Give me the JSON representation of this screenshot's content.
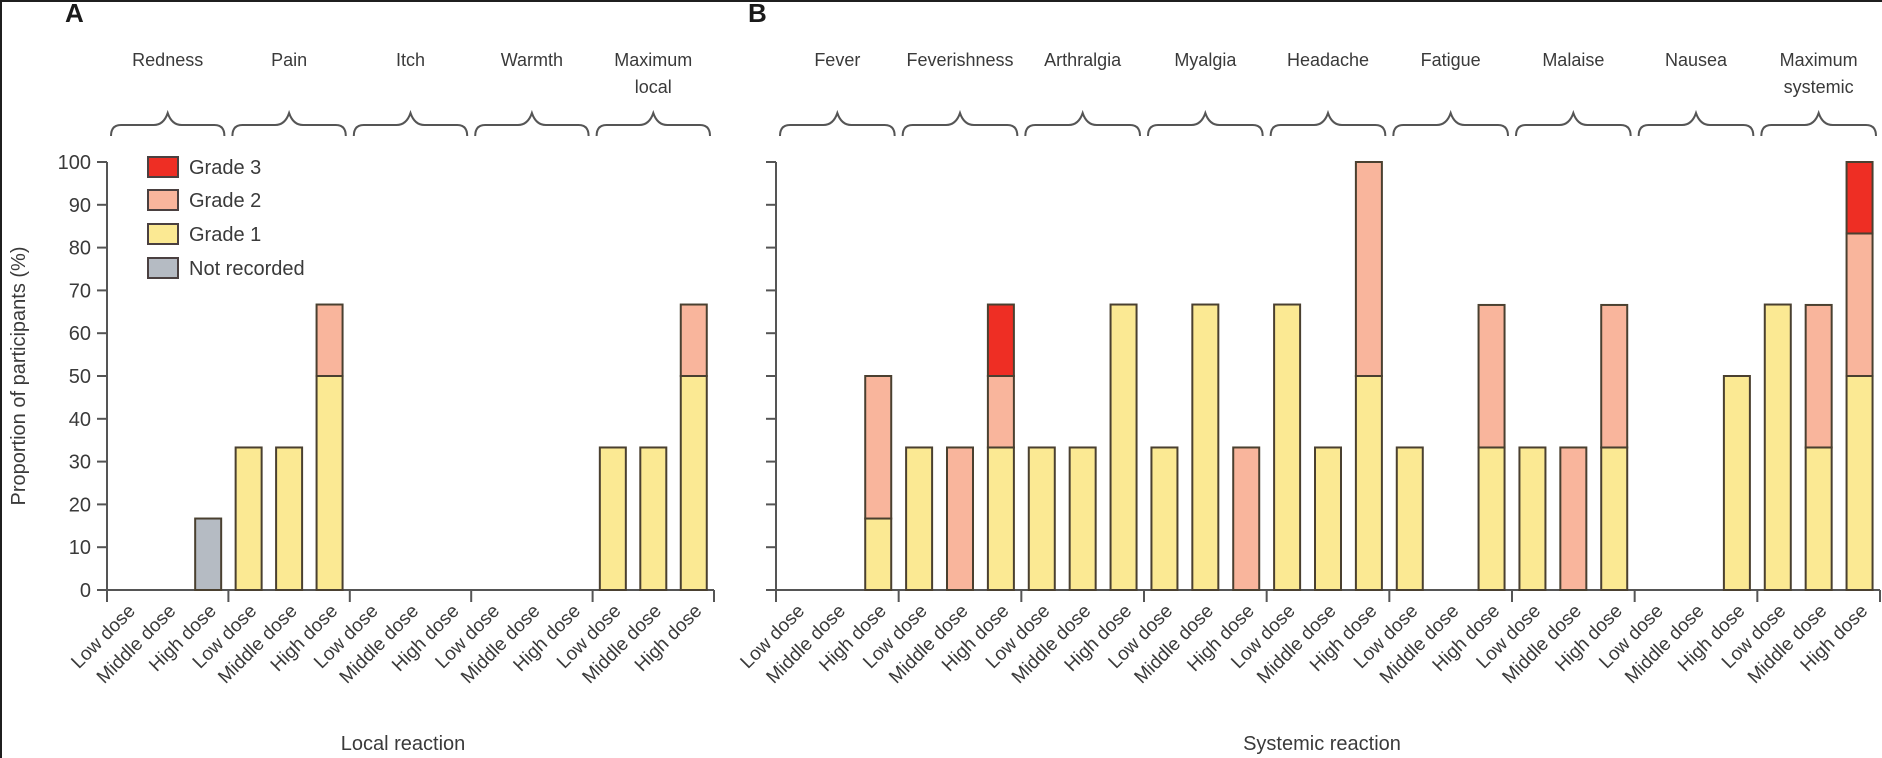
{
  "chart_data": [
    {
      "panel": "A",
      "type": "bar",
      "stacked": true,
      "title": "",
      "xlabel": "Local reaction",
      "ylabel": "Proportion of participants (%)",
      "ylim": [
        0,
        100
      ],
      "yticks": [
        0,
        10,
        20,
        30,
        40,
        50,
        60,
        70,
        80,
        90,
        100
      ],
      "groups": [
        "Redness",
        "Pain",
        "Itch",
        "Warmth",
        "Maximum local"
      ],
      "dose_levels": [
        "Low dose",
        "Middle dose",
        "High dose"
      ],
      "legend": {
        "placement": "top-left",
        "entries": [
          {
            "key": "grade3",
            "label": "Grade 3",
            "color": "#EE2E24"
          },
          {
            "key": "grade2",
            "label": "Grade 2",
            "color": "#F9B59C"
          },
          {
            "key": "grade1",
            "label": "Grade 1",
            "color": "#FBE993"
          },
          {
            "key": "not_recorded",
            "label": "Not recorded",
            "color": "#B5BBC3"
          }
        ]
      },
      "series": [
        {
          "name": "Not recorded",
          "key": "not_recorded",
          "values": [
            0,
            0,
            16.7,
            0,
            0,
            0,
            0,
            0,
            0,
            0,
            0,
            0,
            0,
            0,
            0
          ]
        },
        {
          "name": "Grade 1",
          "key": "grade1",
          "values": [
            0,
            0,
            0,
            33.3,
            33.3,
            50,
            0,
            0,
            0,
            0,
            0,
            0,
            33.3,
            33.3,
            50
          ]
        },
        {
          "name": "Grade 2",
          "key": "grade2",
          "values": [
            0,
            0,
            0,
            0,
            0,
            16.7,
            0,
            0,
            0,
            0,
            0,
            0,
            0,
            0,
            16.7
          ]
        },
        {
          "name": "Grade 3",
          "key": "grade3",
          "values": [
            0,
            0,
            0,
            0,
            0,
            0,
            0,
            0,
            0,
            0,
            0,
            0,
            0,
            0,
            0
          ]
        }
      ]
    },
    {
      "panel": "B",
      "type": "bar",
      "stacked": true,
      "title": "",
      "xlabel": "Systemic reaction",
      "ylabel": "",
      "ylim": [
        0,
        100
      ],
      "yticks": [
        0,
        10,
        20,
        30,
        40,
        50,
        60,
        70,
        80,
        90,
        100
      ],
      "groups": [
        "Fever",
        "Feverishness",
        "Arthralgia",
        "Myalgia",
        "Headache",
        "Fatigue",
        "Malaise",
        "Nausea",
        "Maximum systemic"
      ],
      "dose_levels": [
        "Low dose",
        "Middle dose",
        "High dose"
      ],
      "series": [
        {
          "name": "Not recorded",
          "key": "not_recorded",
          "values": [
            0,
            0,
            0,
            0,
            0,
            0,
            0,
            0,
            0,
            0,
            0,
            0,
            0,
            0,
            0,
            0,
            0,
            0,
            0,
            0,
            0,
            0,
            0,
            0,
            0,
            0,
            0
          ]
        },
        {
          "name": "Grade 1",
          "key": "grade1",
          "values": [
            0,
            0,
            16.7,
            33.3,
            0,
            33.3,
            33.3,
            33.3,
            66.7,
            33.3,
            66.7,
            0,
            66.7,
            33.3,
            50,
            33.3,
            0,
            33.3,
            33.3,
            0,
            33.3,
            0,
            0,
            50,
            66.7,
            33.3,
            50
          ]
        },
        {
          "name": "Grade 2",
          "key": "grade2",
          "values": [
            0,
            0,
            33.3,
            0,
            33.3,
            16.7,
            0,
            0,
            0,
            0,
            0,
            33.3,
            0,
            0,
            50,
            0,
            0,
            33.3,
            0,
            33.3,
            33.3,
            0,
            0,
            0,
            0,
            33.3,
            33.3
          ]
        },
        {
          "name": "Grade 3",
          "key": "grade3",
          "values": [
            0,
            0,
            0,
            0,
            0,
            16.7,
            0,
            0,
            0,
            0,
            0,
            0,
            0,
            0,
            0,
            0,
            0,
            0,
            0,
            0,
            0,
            0,
            0,
            0,
            0,
            0,
            16.7
          ]
        }
      ]
    }
  ],
  "labels": {
    "panel_a": "A",
    "panel_b": "B",
    "group_labels_a": [
      [
        "Redness"
      ],
      [
        "Pain"
      ],
      [
        "Itch"
      ],
      [
        "Warmth"
      ],
      [
        "Maximum",
        "local"
      ]
    ],
    "group_labels_b": [
      [
        "Fever"
      ],
      [
        "Feverishness"
      ],
      [
        "Arthralgia"
      ],
      [
        "Myalgia"
      ],
      [
        "Headache"
      ],
      [
        "Fatigue"
      ],
      [
        "Malaise"
      ],
      [
        "Nausea"
      ],
      [
        "Maximum",
        "systemic"
      ]
    ]
  }
}
